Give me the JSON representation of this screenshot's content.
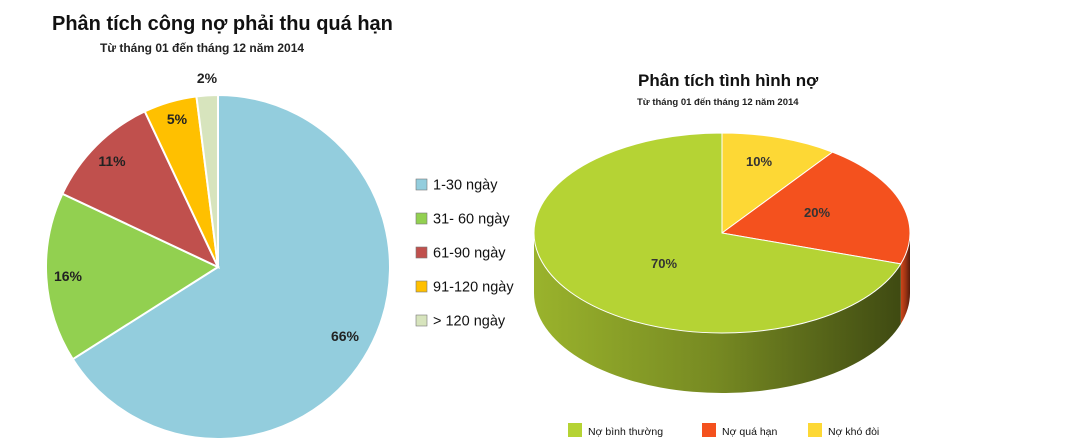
{
  "chart_data": [
    {
      "type": "pie",
      "title": "Phân tích công nợ phải thu quá hạn",
      "subtitle": "Từ tháng 01 đến tháng 12 năm 2014",
      "categories": [
        "1-30 ngày",
        "31- 60 ngày",
        "61-90 ngày",
        "91-120 ngày",
        "> 120 ngày"
      ],
      "values": [
        66,
        16,
        11,
        5,
        2
      ],
      "data_labels": [
        "66%",
        "16%",
        "11%",
        "5%",
        "2%"
      ],
      "colors": [
        "#93CDDD",
        "#92D050",
        "#C0504D",
        "#FFC000",
        "#D7E4BD"
      ],
      "legend": "right"
    },
    {
      "type": "pie",
      "title": "Phân tích tình hình nợ",
      "subtitle": "Từ tháng 01 đến tháng 12 năm 2014",
      "categories": [
        "Nợ bình thường",
        "Nợ quá hạn",
        "Nợ khó đòi"
      ],
      "values": [
        70,
        20,
        10
      ],
      "data_labels": [
        "70%",
        "20%",
        "10%"
      ],
      "colors": [
        "#B5D334",
        "#F4511E",
        "#FDD835"
      ],
      "legend": "bottom"
    }
  ]
}
